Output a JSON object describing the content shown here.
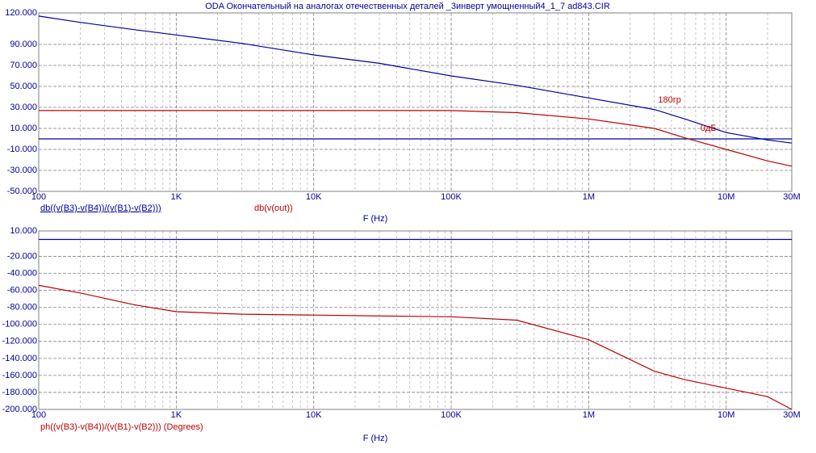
{
  "title": "ODA  Окончательный на аналогах отечественных деталей _3инверт умощненный4_1_7 ad843.CIR",
  "chart_data": [
    {
      "type": "line",
      "log_x": true,
      "grid": true,
      "xlabel": "F (Hz)",
      "x": [
        100,
        200,
        500,
        1000,
        3000,
        10000,
        30000,
        100000,
        300000,
        1000000,
        3000000,
        5000000,
        10000000,
        20000000,
        30000000
      ],
      "series": [
        {
          "name": "db((v(B3)-v(B4))/(v(B1)-v(B2)))",
          "color": "#0000a0",
          "values": [
            117,
            111,
            104,
            99,
            91,
            80,
            72,
            60,
            51,
            39,
            28,
            19,
            6,
            -1,
            -4
          ]
        },
        {
          "name": "db(v(out))",
          "color": "#c00000",
          "values": [
            27,
            27,
            27,
            27,
            27,
            27,
            27,
            27,
            25,
            19,
            10,
            1,
            -10,
            -21,
            -26
          ]
        }
      ],
      "reference_line": {
        "y": 0,
        "color": "#0000a0"
      },
      "annotations": [
        {
          "text": "180гр",
          "x": 3200000,
          "y": 37,
          "color": "#c00000"
        },
        {
          "text": "0дБ",
          "x": 6500000,
          "y": 10,
          "color": "#c00000"
        }
      ],
      "xlim": [
        100,
        30000000
      ],
      "xticks": [
        100,
        {
          "value": 1000,
          "label": "1K"
        },
        {
          "value": 10000,
          "label": "10K"
        },
        {
          "value": 100000,
          "label": "100K"
        },
        {
          "value": 1000000,
          "label": "1M"
        },
        {
          "value": 10000000,
          "label": "10M"
        },
        {
          "value": 30000000,
          "label": "30M"
        }
      ],
      "ylim": [
        -50,
        120
      ],
      "yticks": [
        {
          "value": -50,
          "label": "-50.000"
        },
        {
          "value": -30,
          "label": "-30.000"
        },
        {
          "value": -10,
          "label": "-10.000"
        },
        {
          "value": 10,
          "label": "10.000"
        },
        {
          "value": 30,
          "label": "30.000"
        },
        {
          "value": 50,
          "label": "50.000"
        },
        {
          "value": 70,
          "label": "70.000"
        },
        {
          "value": 90,
          "label": "90.000"
        },
        {
          "value": 120,
          "label": "120.000"
        }
      ]
    },
    {
      "type": "line",
      "log_x": true,
      "grid": true,
      "xlabel": "F (Hz)",
      "x": [
        100,
        200,
        500,
        1000,
        3000,
        10000,
        30000,
        100000,
        300000,
        1000000,
        3000000,
        5000000,
        10000000,
        20000000,
        30000000
      ],
      "series": [
        {
          "name": "ph((v(B3)-v(B4))/(v(B1)-v(B2))) (Degrees)",
          "color": "#c00000",
          "values": [
            -54,
            -63,
            -77,
            -85,
            -88,
            -89,
            -90,
            -91,
            -95,
            -118,
            -155,
            -165,
            -175,
            -185,
            -200
          ]
        }
      ],
      "reference_line": {
        "y": 0,
        "color": "#0000a0"
      },
      "xlim": [
        100,
        30000000
      ],
      "xticks": [
        100,
        {
          "value": 1000,
          "label": "1K"
        },
        {
          "value": 10000,
          "label": "10K"
        },
        {
          "value": 100000,
          "label": "100K"
        },
        {
          "value": 1000000,
          "label": "1M"
        },
        {
          "value": 10000000,
          "label": "10M"
        },
        {
          "value": 30000000,
          "label": "30M"
        }
      ],
      "ylim": [
        -200,
        10
      ],
      "yticks": [
        {
          "value": -200,
          "label": "-200.000"
        },
        {
          "value": -180,
          "label": "-180.000"
        },
        {
          "value": -160,
          "label": "-160.000"
        },
        {
          "value": -140,
          "label": "-140.000"
        },
        {
          "value": -120,
          "label": "-120.000"
        },
        {
          "value": -100,
          "label": "-100.000"
        },
        {
          "value": -80,
          "label": "-80.000"
        },
        {
          "value": -60,
          "label": "-60.000"
        },
        {
          "value": -40,
          "label": "-40.000"
        },
        {
          "value": -20,
          "label": "-20.000"
        },
        {
          "value": 10,
          "label": "10.000"
        }
      ]
    }
  ]
}
